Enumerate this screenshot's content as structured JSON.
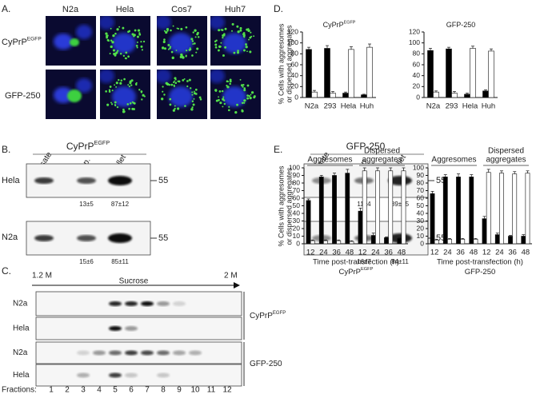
{
  "panels": {
    "a": {
      "letter": "A.",
      "columns": [
        "N2a",
        "Hela",
        "Cos7",
        "Huh7"
      ],
      "rows": [
        {
          "base": "CyPrP",
          "sup": "EGFP"
        },
        {
          "base": "GFP-250"
        }
      ]
    },
    "b": {
      "letter": "B.",
      "rows": [
        "Hela",
        "N2a"
      ],
      "marker": "55",
      "groups": [
        {
          "base": "CyPrP",
          "sup": "EGFP",
          "lanes": [
            "Lysate",
            "Sup.",
            "Pellet"
          ],
          "quant": [
            [
              "13±5",
              "87±12"
            ],
            [
              "15±6",
              "85±11"
            ]
          ]
        },
        {
          "base": "GFP-250",
          "lanes": [
            "Lysate",
            "Sup.",
            "Pellet"
          ],
          "quant": [
            [
              "11±4",
              "89±15"
            ],
            [
              "16±7",
              "84±11"
            ]
          ]
        }
      ]
    },
    "c": {
      "letter": "C.",
      "start": "1.2 M",
      "label": "Sucrose",
      "end": "2 M",
      "rows": [
        "N2a",
        "Hela",
        "N2a",
        "Hela"
      ],
      "groups": [
        {
          "base": "CyPrP",
          "sup": "EGFP"
        },
        {
          "base": "GFP-250"
        }
      ],
      "fractions_label": "Fractions:",
      "fractions": [
        "1",
        "2",
        "3",
        "4",
        "5",
        "6",
        "7",
        "8",
        "9",
        "10",
        "11",
        "12"
      ]
    },
    "d": {
      "letter": "D.",
      "ylabel": [
        "% Cells with aggresomes",
        "or dispersed aggregates"
      ]
    },
    "e": {
      "letter": "E.",
      "ylabel": [
        "% Cells with aggresomes",
        "or dispersed aggregates"
      ]
    }
  },
  "chart_data": [
    {
      "type": "bar",
      "title": "CyPrP",
      "title_sup": "EGFP",
      "categories": [
        "N2a",
        "293",
        "Hela",
        "Huh"
      ],
      "series": [
        {
          "color": "#000000",
          "values": [
            88,
            90,
            8,
            5
          ],
          "errors": [
            4,
            5,
            2,
            1
          ]
        },
        {
          "color": "#ffffff",
          "values": [
            10,
            8,
            88,
            92
          ],
          "errors": [
            3,
            3,
            5,
            6
          ]
        }
      ],
      "ylim": [
        0,
        120
      ],
      "yticks": [
        0,
        20,
        40,
        60,
        80,
        100,
        120
      ]
    },
    {
      "type": "bar",
      "title": "GFP-250",
      "categories": [
        "N2a",
        "293",
        "Hela",
        "Huh"
      ],
      "series": [
        {
          "color": "#000000",
          "values": [
            86,
            89,
            6,
            12
          ],
          "errors": [
            4,
            3,
            2,
            2
          ]
        },
        {
          "color": "#ffffff",
          "values": [
            10,
            8,
            90,
            85
          ],
          "errors": [
            2,
            3,
            4,
            4
          ]
        }
      ],
      "ylim": [
        0,
        120
      ],
      "yticks": [
        0,
        20,
        40,
        60,
        80,
        100,
        120
      ]
    },
    {
      "type": "bar",
      "xlabel": "Time post-transfection (h)",
      "subtitle": "CyPrP",
      "subtitle_sup": "EGFP",
      "groups": [
        [
          "Aggresomes"
        ],
        [
          "Dispersed",
          "aggregates"
        ]
      ],
      "categories": [
        "12",
        "24",
        "36",
        "48",
        "12",
        "24",
        "36",
        "48"
      ],
      "series": [
        {
          "color": "#000000",
          "values": [
            57,
            88,
            90,
            93,
            43,
            11,
            8,
            7
          ],
          "errors": [
            2,
            2,
            3,
            5,
            4,
            3,
            1,
            1
          ]
        },
        {
          "color": "#ffffff",
          "values": [
            4,
            4,
            4,
            3,
            96,
            96,
            96,
            96
          ],
          "errors": [
            1,
            1,
            1,
            1,
            4,
            4,
            4,
            4
          ]
        }
      ],
      "ylim": [
        0,
        100
      ],
      "yticks": [
        0,
        10,
        20,
        30,
        40,
        50,
        60,
        70,
        80,
        90,
        100
      ]
    },
    {
      "type": "bar",
      "xlabel": "Time post-transfection (h)",
      "subtitle": "GFP-250",
      "groups": [
        [
          "Aggresomes"
        ],
        [
          "Dispersed",
          "aggregates"
        ]
      ],
      "categories": [
        "12",
        "24",
        "36",
        "48",
        "12",
        "24",
        "36",
        "48"
      ],
      "series": [
        {
          "color": "#000000",
          "values": [
            66,
            88,
            88,
            88,
            33,
            12,
            10,
            10
          ],
          "errors": [
            3,
            3,
            4,
            3,
            3,
            2,
            1,
            2
          ]
        },
        {
          "color": "#ffffff",
          "values": [
            5,
            6,
            6,
            6,
            94,
            93,
            92,
            93
          ],
          "errors": [
            1,
            1,
            1,
            1,
            4,
            3,
            3,
            3
          ]
        }
      ],
      "ylim": [
        0,
        100
      ],
      "yticks": [
        0,
        10,
        20,
        30,
        40,
        50,
        60,
        70,
        80,
        90,
        100
      ]
    }
  ]
}
